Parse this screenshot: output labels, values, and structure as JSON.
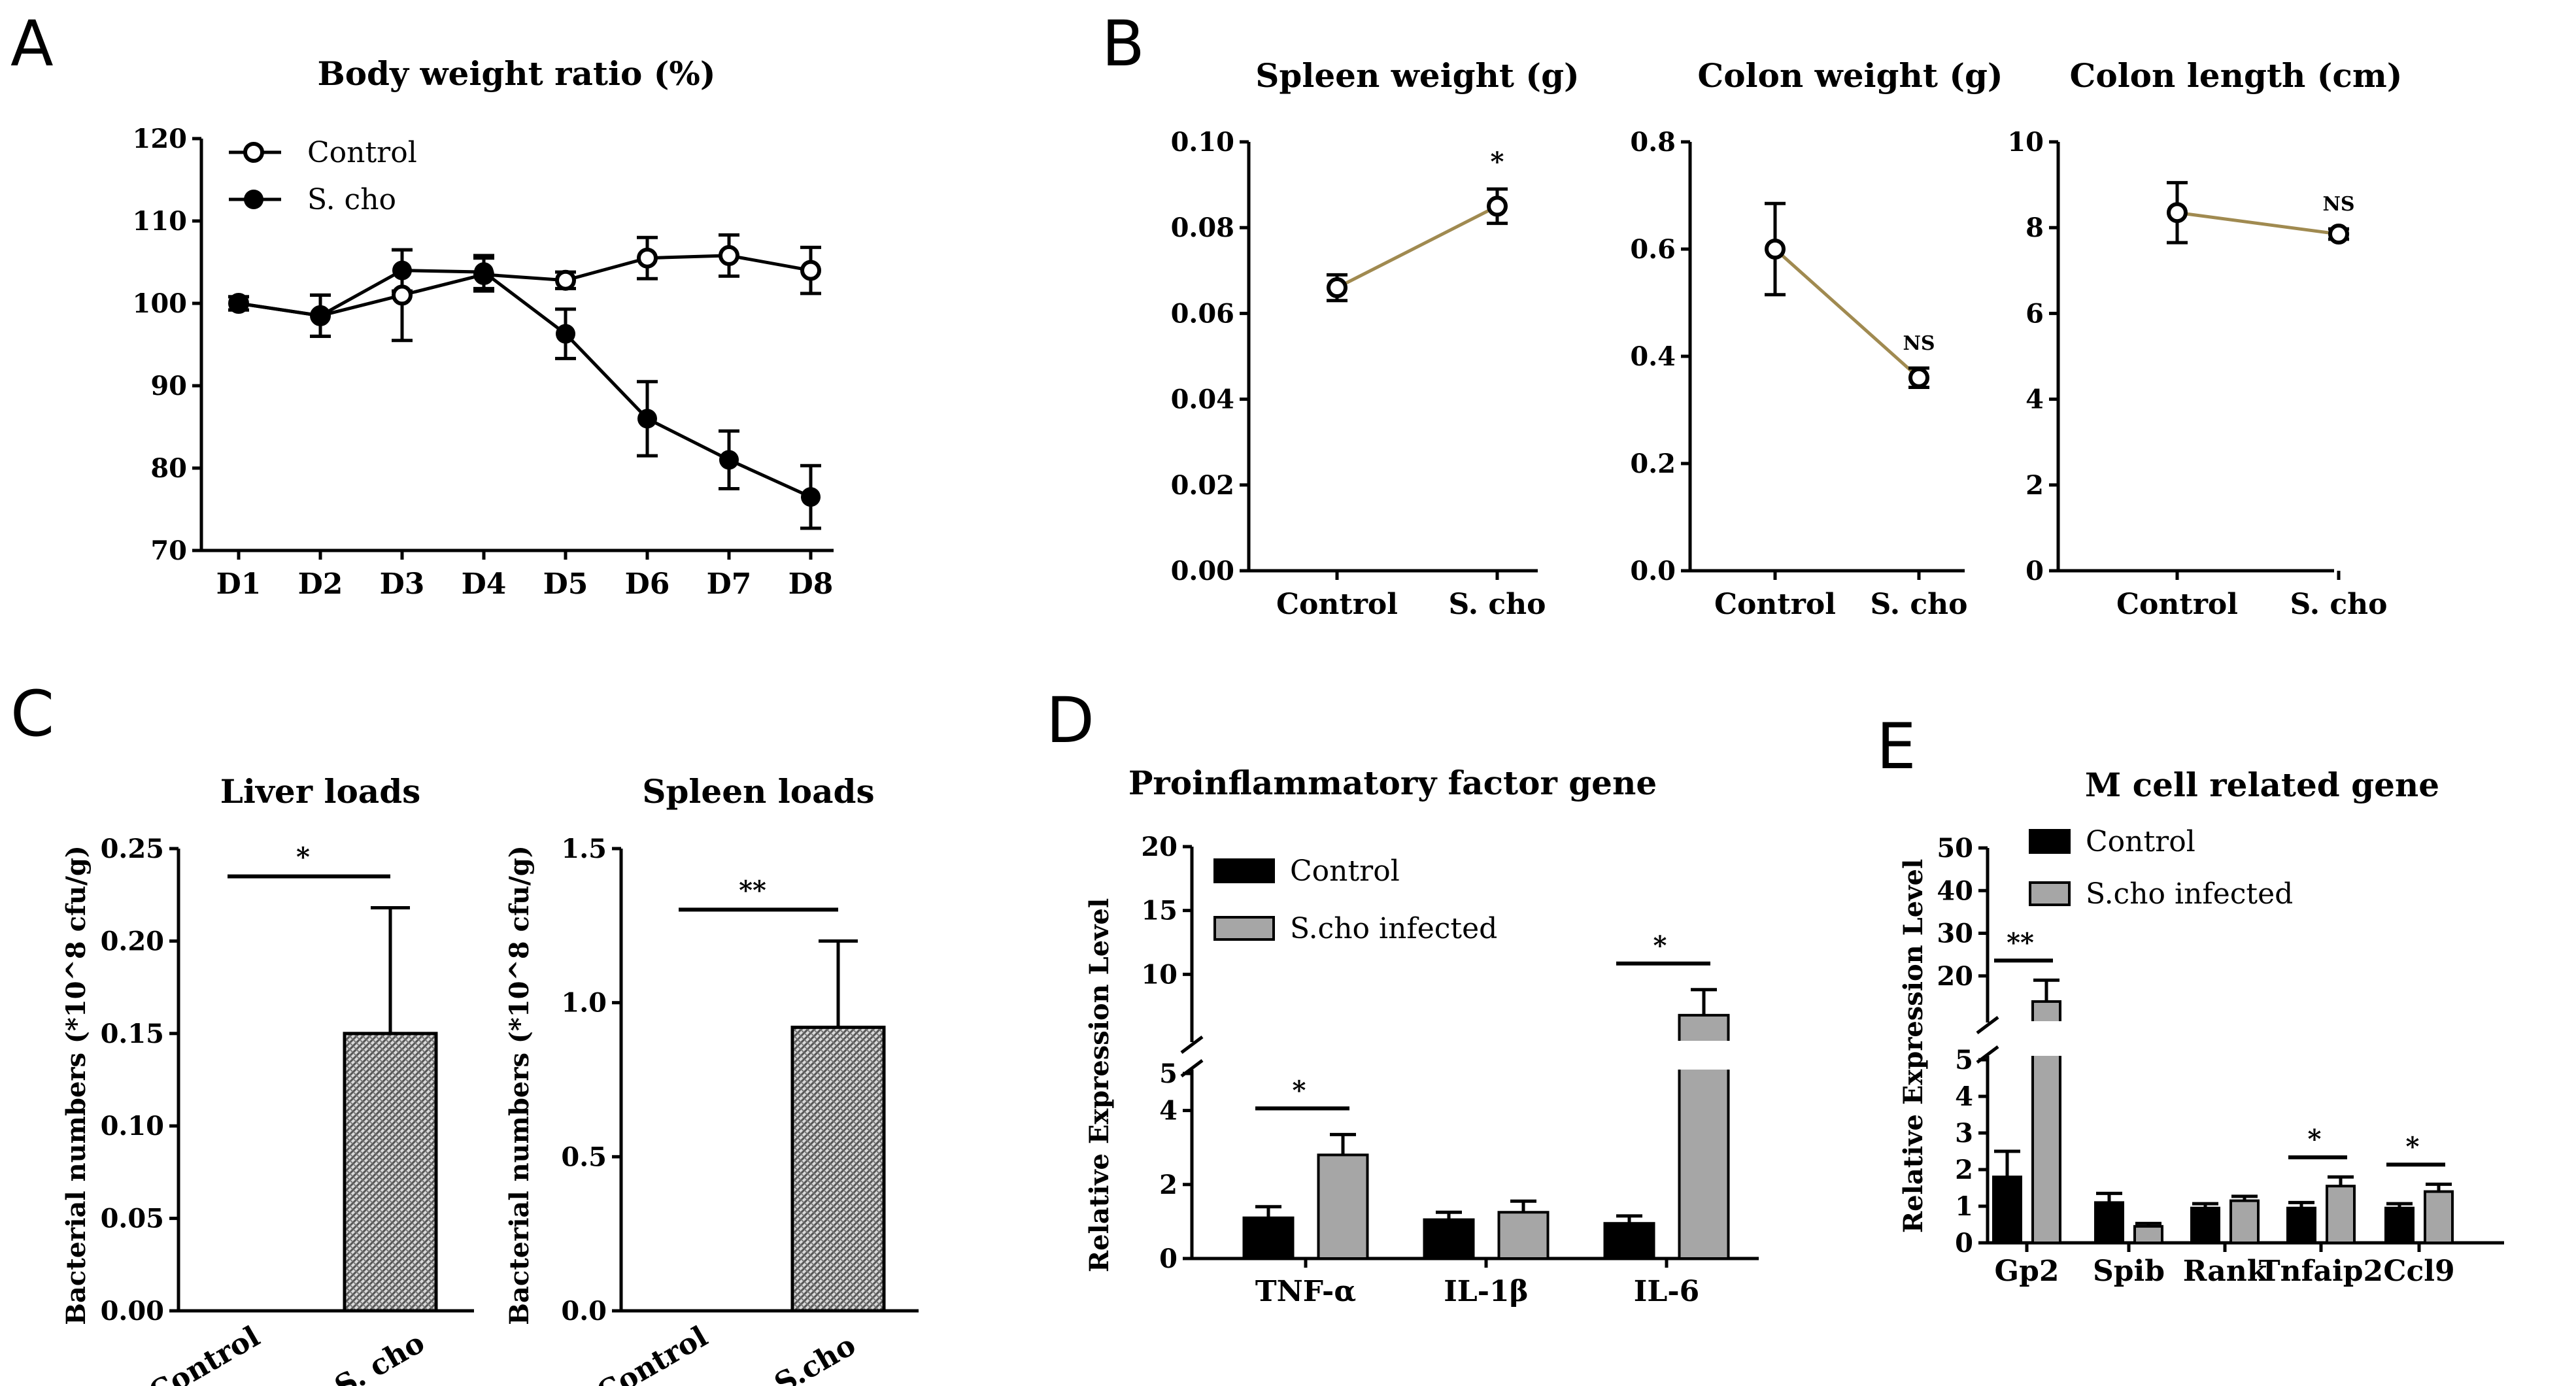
{
  "colors": {
    "ink": "#000000",
    "paired_line": "#a08a50",
    "infected_bar": "#a6a6a6",
    "control_bar": "#000000",
    "hatch_bar": "#8c8c8c"
  },
  "panels": {
    "a": "A",
    "b": "B",
    "c": "C",
    "d": "D",
    "e": "E"
  },
  "chart_data": [
    {
      "id": "A",
      "type": "line",
      "title": "Body weight ratio (%)",
      "xlabel": "",
      "ylabel": "",
      "categories": [
        "D1",
        "D2",
        "D3",
        "D4",
        "D5",
        "D6",
        "D7",
        "D8"
      ],
      "ylim": [
        70,
        120
      ],
      "yticks": [
        "70",
        "80",
        "90",
        "100",
        "110",
        "120"
      ],
      "legend_position": "top-left",
      "series": [
        {
          "name": "Control",
          "marker": "open-circle",
          "values": [
            100,
            98.5,
            101,
            103.5,
            102.8,
            105.5,
            105.8,
            104
          ],
          "errors": [
            0.8,
            2.5,
            5.5,
            2,
            1,
            2.5,
            2.5,
            2.8
          ]
        },
        {
          "name": "S. cho",
          "marker": "filled-circle",
          "values": [
            100,
            98.5,
            104,
            103.8,
            96.3,
            86,
            81,
            76.5
          ],
          "errors": [
            0.8,
            2.5,
            2.5,
            2,
            3,
            4.5,
            3.5,
            3.8
          ]
        }
      ]
    },
    {
      "id": "B1",
      "type": "line",
      "title": "Spleen weight (g)",
      "categories": [
        "Control",
        "S. cho"
      ],
      "ylim": [
        0,
        0.1
      ],
      "yticks": [
        "0.00",
        "0.02",
        "0.04",
        "0.06",
        "0.08",
        "0.10"
      ],
      "values": [
        0.066,
        0.085
      ],
      "errors": [
        0.003,
        0.004
      ],
      "annotations": [
        {
          "at": "S. cho",
          "text": "*"
        }
      ]
    },
    {
      "id": "B2",
      "type": "line",
      "title": "Colon weight (g)",
      "categories": [
        "Control",
        "S. cho"
      ],
      "ylim": [
        0,
        0.8
      ],
      "yticks": [
        "0.0",
        "0.2",
        "0.4",
        "0.6",
        "0.8"
      ],
      "values": [
        0.6,
        0.36
      ],
      "errors": [
        0.085,
        0.018
      ],
      "annotations": [
        {
          "at": "S. cho",
          "text": "NS"
        }
      ]
    },
    {
      "id": "B3",
      "type": "line",
      "title": "Colon length (cm)",
      "categories": [
        "Control",
        "S. cho"
      ],
      "ylim": [
        0,
        10
      ],
      "yticks": [
        "0",
        "2",
        "4",
        "6",
        "8",
        "10"
      ],
      "values": [
        8.35,
        7.85
      ],
      "errors": [
        0.7,
        0.12
      ],
      "annotations": [
        {
          "at": "S. cho",
          "text": "NS"
        }
      ]
    },
    {
      "id": "C1",
      "type": "bar",
      "title": "Liver loads",
      "ylabel": "Bacterial numbers (*10^8 cfu/g)",
      "categories": [
        "Control",
        "S. cho"
      ],
      "ylim": [
        0,
        0.25
      ],
      "yticks": [
        "0.00",
        "0.05",
        "0.10",
        "0.15",
        "0.20",
        "0.25"
      ],
      "values": [
        0,
        0.15
      ],
      "errors": [
        0,
        0.068
      ],
      "annotations": [
        {
          "between": [
            "Control",
            "S. cho"
          ],
          "text": "*"
        }
      ]
    },
    {
      "id": "C2",
      "type": "bar",
      "title": "Spleen loads",
      "ylabel": "Bacterial numbers (*10^8 cfu/g)",
      "categories": [
        "Control",
        "S.cho"
      ],
      "ylim": [
        0,
        1.5
      ],
      "yticks": [
        "0.0",
        "0.5",
        "1.0",
        "1.5"
      ],
      "values": [
        0,
        0.92
      ],
      "errors": [
        0,
        0.28
      ],
      "annotations": [
        {
          "between": [
            "Control",
            "S.cho"
          ],
          "text": "**"
        }
      ]
    },
    {
      "id": "D",
      "type": "bar",
      "title": "Proinflammatory factor gene",
      "ylabel": "Relative Expression Level",
      "categories": [
        "TNF-α",
        "IL-1β",
        "IL-6"
      ],
      "axis_break": {
        "lower": [
          0,
          5
        ],
        "upper": [
          5,
          20
        ]
      },
      "lower_ticks": [
        "0",
        "2",
        "4"
      ],
      "upper_ticks": [
        "5",
        "10",
        "15",
        "20"
      ],
      "legend_position": "top-left",
      "series": [
        {
          "name": "Control",
          "values": [
            1.1,
            1.05,
            0.95
          ],
          "errors": [
            0.3,
            0.2,
            0.2
          ]
        },
        {
          "name": "S.cho infected",
          "values": [
            2.8,
            1.25,
            6.8
          ],
          "errors": [
            0.55,
            0.3,
            2.0
          ]
        }
      ],
      "annotations": [
        {
          "at": "TNF-α",
          "text": "*"
        },
        {
          "at": "IL-6",
          "text": "*"
        }
      ]
    },
    {
      "id": "E",
      "type": "bar",
      "title": "M cell related gene",
      "ylabel": "Relative Expression Level",
      "categories": [
        "Gp2",
        "Spib",
        "Rank",
        "Tnfaip2",
        "Ccl9"
      ],
      "axis_break": {
        "lower": [
          0,
          5
        ],
        "upper": [
          10,
          50
        ]
      },
      "lower_ticks": [
        "0",
        "1",
        "2",
        "3",
        "4",
        "5"
      ],
      "upper_ticks": [
        "20",
        "30",
        "40",
        "50"
      ],
      "legend_position": "top-left",
      "series": [
        {
          "name": "Control",
          "values": [
            1.8,
            1.1,
            0.95,
            0.95,
            0.95
          ],
          "errors": [
            0.7,
            0.25,
            0.12,
            0.15,
            0.12
          ]
        },
        {
          "name": "S.cho infected",
          "values": [
            14,
            0.45,
            1.15,
            1.55,
            1.4
          ],
          "errors": [
            5,
            0.08,
            0.12,
            0.25,
            0.2
          ]
        }
      ],
      "annotations": [
        {
          "at": "Gp2",
          "text": "**"
        },
        {
          "at": "Tnfaip2",
          "text": "*"
        },
        {
          "at": "Ccl9",
          "text": "*"
        }
      ]
    }
  ]
}
